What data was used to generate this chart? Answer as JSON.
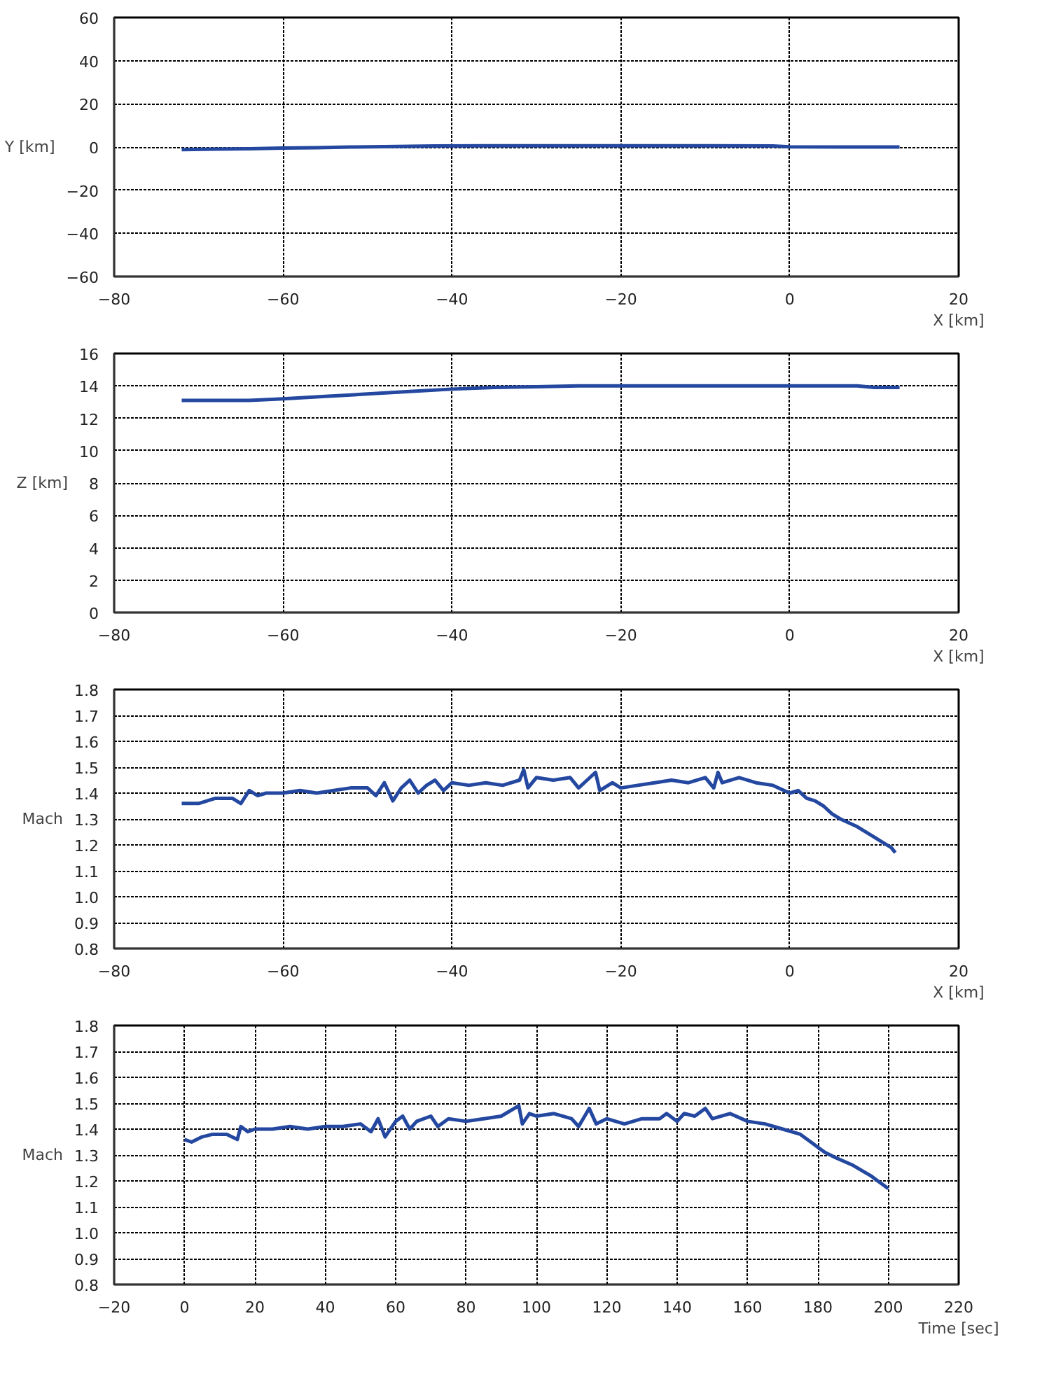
{
  "chart_data": [
    {
      "type": "line",
      "xlabel": "X [km]",
      "ylabel": "Y [km]",
      "xlim": [
        -80,
        20
      ],
      "ylim": [
        -60,
        60
      ],
      "xticks": [
        -80,
        -60,
        -40,
        -20,
        0,
        20
      ],
      "yticks": [
        -60,
        -40,
        -20,
        0,
        20,
        40,
        60
      ],
      "grid": true,
      "x": [
        -72,
        -68,
        -64,
        -60,
        -56,
        -52,
        -48,
        -42,
        -36,
        -30,
        -20,
        -10,
        -2,
        0,
        6,
        13
      ],
      "series": [
        {
          "color": "#2448a0",
          "values": [
            -1.2,
            -1.0,
            -0.8,
            -0.5,
            -0.3,
            0,
            0.2,
            0.5,
            0.6,
            0.6,
            0.6,
            0.6,
            0.5,
            0.1,
            0,
            0
          ]
        }
      ]
    },
    {
      "type": "line",
      "xlabel": "X [km]",
      "ylabel": "Z [km]",
      "xlim": [
        -80,
        20
      ],
      "ylim": [
        0,
        16
      ],
      "xticks": [
        -80,
        -60,
        -40,
        -20,
        0,
        20
      ],
      "yticks": [
        0,
        2,
        4,
        6,
        8,
        10,
        12,
        14,
        16
      ],
      "grid": true,
      "x": [
        -72,
        -68,
        -64,
        -60,
        -55,
        -50,
        -45,
        -40,
        -35,
        -30,
        -25,
        -20,
        -10,
        0,
        8,
        10,
        13
      ],
      "series": [
        {
          "color": "#2448a0",
          "values": [
            13.1,
            13.1,
            13.1,
            13.2,
            13.35,
            13.5,
            13.65,
            13.8,
            13.9,
            13.95,
            14.0,
            14.0,
            14.0,
            14.0,
            14.0,
            13.9,
            13.9
          ]
        }
      ]
    },
    {
      "type": "line",
      "xlabel": "X [km]",
      "ylabel": "Mach",
      "xlim": [
        -80,
        20
      ],
      "ylim": [
        0.8,
        1.8
      ],
      "xticks": [
        -80,
        -60,
        -40,
        -20,
        0,
        20
      ],
      "yticks": [
        {
          "value": 0.8,
          "label": "0.8"
        },
        {
          "value": 0.9,
          "label": "0.9"
        },
        {
          "value": 1.0,
          "label": "1.0"
        },
        {
          "value": 1.1,
          "label": "1.1"
        },
        {
          "value": 1.2,
          "label": "1.2"
        },
        {
          "value": 1.3,
          "label": "1.3"
        },
        {
          "value": 1.4,
          "label": "1.4"
        },
        {
          "value": 1.5,
          "label": "1.5"
        },
        {
          "value": 1.6,
          "label": "1.6"
        },
        {
          "value": 1.7,
          "label": "1.7"
        },
        {
          "value": 1.8,
          "label": "1.8"
        }
      ],
      "grid": true,
      "x": [
        -72,
        -70,
        -68,
        -66,
        -65,
        -64,
        -63,
        -62,
        -60,
        -58,
        -56,
        -54,
        -52,
        -50,
        -49,
        -48,
        -47,
        -46,
        -45,
        -44,
        -43,
        -42,
        -41,
        -40,
        -38,
        -36,
        -34,
        -32,
        -31.5,
        -31,
        -30,
        -28,
        -26,
        -25,
        -24,
        -23,
        -22.5,
        -21,
        -20,
        -18,
        -16,
        -14,
        -12,
        -10,
        -9,
        -8.5,
        -8,
        -6,
        -4,
        -2,
        0,
        1,
        2,
        3,
        4,
        5,
        6,
        8,
        10,
        11,
        12,
        12.5
      ],
      "series": [
        {
          "color": "#2448a0",
          "values": [
            1.36,
            1.36,
            1.38,
            1.38,
            1.36,
            1.41,
            1.39,
            1.4,
            1.4,
            1.41,
            1.4,
            1.41,
            1.42,
            1.42,
            1.39,
            1.44,
            1.37,
            1.42,
            1.45,
            1.4,
            1.43,
            1.45,
            1.41,
            1.44,
            1.43,
            1.44,
            1.43,
            1.45,
            1.49,
            1.42,
            1.46,
            1.45,
            1.46,
            1.42,
            1.45,
            1.48,
            1.41,
            1.44,
            1.42,
            1.43,
            1.44,
            1.45,
            1.44,
            1.46,
            1.42,
            1.48,
            1.44,
            1.46,
            1.44,
            1.43,
            1.4,
            1.41,
            1.38,
            1.37,
            1.35,
            1.32,
            1.3,
            1.27,
            1.23,
            1.21,
            1.19,
            1.17
          ]
        }
      ]
    },
    {
      "type": "line",
      "xlabel": "Time [sec]",
      "ylabel": "Mach",
      "xlim": [
        -20,
        220
      ],
      "ylim": [
        0.8,
        1.8
      ],
      "xticks": [
        -20,
        0,
        20,
        40,
        60,
        80,
        100,
        120,
        140,
        160,
        180,
        200,
        220
      ],
      "yticks": [
        {
          "value": 0.8,
          "label": "0.8"
        },
        {
          "value": 0.9,
          "label": "0.9"
        },
        {
          "value": 1.0,
          "label": "1.0"
        },
        {
          "value": 1.1,
          "label": "1.1"
        },
        {
          "value": 1.2,
          "label": "1.2"
        },
        {
          "value": 1.3,
          "label": "1.3"
        },
        {
          "value": 1.4,
          "label": "1.4"
        },
        {
          "value": 1.5,
          "label": "1.5"
        },
        {
          "value": 1.6,
          "label": "1.6"
        },
        {
          "value": 1.7,
          "label": "1.7"
        },
        {
          "value": 1.8,
          "label": "1.8"
        }
      ],
      "grid": true,
      "x": [
        0,
        2,
        5,
        8,
        12,
        15,
        16,
        18,
        20,
        25,
        30,
        35,
        40,
        45,
        50,
        53,
        55,
        57,
        60,
        62,
        64,
        66,
        70,
        72,
        75,
        80,
        85,
        90,
        95,
        96,
        98,
        100,
        105,
        110,
        112,
        115,
        117,
        120,
        125,
        130,
        135,
        137,
        140,
        142,
        145,
        148,
        150,
        155,
        160,
        165,
        170,
        175,
        178,
        180,
        182,
        185,
        190,
        195,
        197,
        200
      ],
      "series": [
        {
          "color": "#2448a0",
          "values": [
            1.36,
            1.35,
            1.37,
            1.38,
            1.38,
            1.36,
            1.41,
            1.39,
            1.4,
            1.4,
            1.41,
            1.4,
            1.41,
            1.41,
            1.42,
            1.39,
            1.44,
            1.37,
            1.43,
            1.45,
            1.4,
            1.43,
            1.45,
            1.41,
            1.44,
            1.43,
            1.44,
            1.45,
            1.49,
            1.42,
            1.46,
            1.45,
            1.46,
            1.44,
            1.41,
            1.48,
            1.42,
            1.44,
            1.42,
            1.44,
            1.44,
            1.46,
            1.43,
            1.46,
            1.45,
            1.48,
            1.44,
            1.46,
            1.43,
            1.42,
            1.4,
            1.38,
            1.35,
            1.33,
            1.31,
            1.29,
            1.26,
            1.22,
            1.2,
            1.17
          ]
        }
      ]
    }
  ]
}
